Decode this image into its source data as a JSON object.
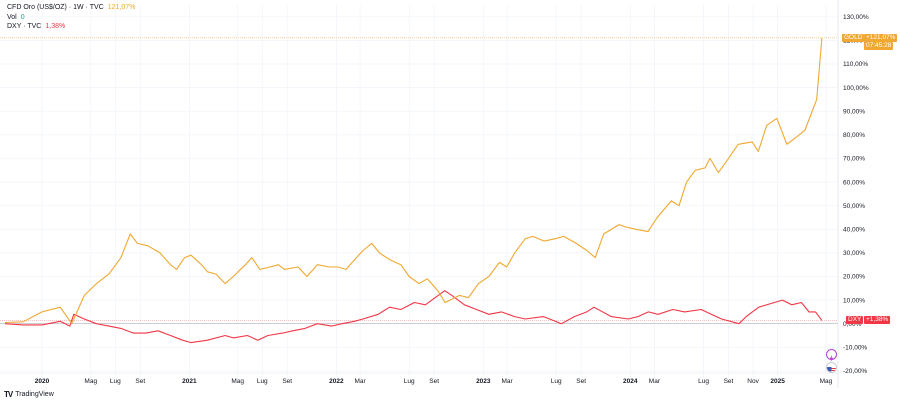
{
  "legend": {
    "gold_symbol": "CFD Oro (US$/OZ) · 1W · TVC",
    "gold_value": "121,07%",
    "vol_label": "Vol",
    "vol_value": "0",
    "dxy_symbol": "DXY · TVC",
    "dxy_value": "1,38%"
  },
  "tags": {
    "gold_name": "GOLD",
    "gold_pct": "+121,07%",
    "gold_timer": "07:45:28",
    "dxy_name": "DXY",
    "dxy_pct": "+1,38%"
  },
  "brand": {
    "logo": "TV",
    "name": "TradingView"
  },
  "colors": {
    "gold": "#f0a830",
    "dxy": "#f23645",
    "grid": "#f0f3fa"
  },
  "chart_data": {
    "type": "line",
    "y_unit": "%",
    "ylim": [
      -23,
      135
    ],
    "y_ticks": [
      "130,00%",
      "120,00%",
      "110,00%",
      "100,00%",
      "90,00%",
      "80,00%",
      "70,00%",
      "60,00%",
      "50,00%",
      "40,00%",
      "30,00%",
      "20,00%",
      "10,00%",
      "0,00%",
      "-10,00%",
      "-20,00%"
    ],
    "x_ticks": [
      "2020",
      "Mag",
      "Lug",
      "Set",
      "2021",
      "Mag",
      "Lug",
      "Set",
      "2022",
      "Mar",
      "Lug",
      "Set",
      "2023",
      "Mar",
      "Lug",
      "Set",
      "2024",
      "Mar",
      "Lug",
      "Set",
      "Nov",
      "2025",
      "Mag"
    ],
    "x_tick_years": [
      "2020",
      "2021",
      "2022",
      "2023",
      "2024",
      "2025"
    ],
    "x_tick_dates": [
      "2020-01-01",
      "2020-05-01",
      "2020-07-01",
      "2020-09-01",
      "2021-01-01",
      "2021-05-01",
      "2021-07-01",
      "2021-09-01",
      "2022-01-01",
      "2022-03-01",
      "2022-07-01",
      "2022-09-01",
      "2023-01-01",
      "2023-03-01",
      "2023-07-01",
      "2023-09-01",
      "2024-01-01",
      "2024-03-01",
      "2024-07-01",
      "2024-09-01",
      "2024-11-01",
      "2025-01-01",
      "2025-05-01"
    ],
    "series": [
      {
        "name": "GOLD",
        "x": [
          "2019-10-01",
          "2019-11-15",
          "2020-01-01",
          "2020-02-15",
          "2020-03-15",
          "2020-04-15",
          "2020-05-15",
          "2020-06-15",
          "2020-07-15",
          "2020-08-07",
          "2020-08-25",
          "2020-09-20",
          "2020-10-20",
          "2020-11-15",
          "2020-11-30",
          "2020-12-20",
          "2021-01-05",
          "2021-01-31",
          "2021-02-15",
          "2021-03-08",
          "2021-03-31",
          "2021-04-20",
          "2021-05-20",
          "2021-06-05",
          "2021-06-25",
          "2021-07-20",
          "2021-08-10",
          "2021-08-25",
          "2021-09-28",
          "2021-10-20",
          "2021-11-15",
          "2021-12-15",
          "2022-01-05",
          "2022-01-25",
          "2022-02-20",
          "2022-03-08",
          "2022-03-30",
          "2022-04-18",
          "2022-05-15",
          "2022-06-10",
          "2022-07-01",
          "2022-07-25",
          "2022-08-15",
          "2022-09-10",
          "2022-09-28",
          "2022-11-03",
          "2022-11-25",
          "2022-12-20",
          "2023-01-15",
          "2023-02-10",
          "2023-02-28",
          "2023-03-20",
          "2023-04-15",
          "2023-05-04",
          "2023-06-01",
          "2023-06-29",
          "2023-07-20",
          "2023-08-20",
          "2023-09-15",
          "2023-10-06",
          "2023-10-27",
          "2023-12-04",
          "2023-12-20",
          "2024-01-15",
          "2024-02-14",
          "2024-03-08",
          "2024-04-12",
          "2024-05-01",
          "2024-05-20",
          "2024-06-10",
          "2024-07-05",
          "2024-07-17",
          "2024-08-07",
          "2024-09-01",
          "2024-09-25",
          "2024-10-30",
          "2024-11-14",
          "2024-12-05",
          "2024-12-30",
          "2025-01-24",
          "2025-02-24",
          "2025-03-10",
          "2025-03-28",
          "2025-04-08",
          "2025-04-21"
        ],
        "values": [
          0.5,
          0.8,
          5,
          7,
          0,
          12,
          17,
          21,
          28,
          38,
          34,
          33,
          30,
          25,
          23,
          28,
          29,
          25,
          22,
          21,
          17,
          20,
          25,
          28,
          23,
          24,
          25,
          23,
          24,
          20,
          25,
          24,
          24,
          23,
          28,
          31,
          34,
          30,
          27,
          25,
          20,
          17,
          19,
          14,
          9,
          12,
          11,
          17,
          20,
          26,
          24,
          30,
          36,
          37,
          35,
          36,
          37,
          34,
          31,
          28,
          38,
          42,
          41,
          40,
          39,
          45,
          52,
          50,
          60,
          65,
          66,
          70,
          64,
          70,
          76,
          77,
          73,
          84,
          87,
          76,
          80,
          82,
          90,
          95,
          121.07
        ]
      },
      {
        "name": "DXY",
        "x": [
          "2019-10-01",
          "2019-11-15",
          "2020-01-01",
          "2020-02-15",
          "2020-03-10",
          "2020-03-20",
          "2020-04-15",
          "2020-05-15",
          "2020-06-15",
          "2020-07-15",
          "2020-08-15",
          "2020-09-15",
          "2020-10-15",
          "2020-11-15",
          "2020-12-15",
          "2021-01-05",
          "2021-02-15",
          "2021-03-31",
          "2021-04-20",
          "2021-05-25",
          "2021-06-20",
          "2021-07-15",
          "2021-08-20",
          "2021-09-15",
          "2021-10-15",
          "2021-11-15",
          "2021-12-20",
          "2022-01-15",
          "2022-02-15",
          "2022-03-08",
          "2022-04-15",
          "2022-05-13",
          "2022-06-10",
          "2022-07-14",
          "2022-08-10",
          "2022-09-27",
          "2022-10-15",
          "2022-11-15",
          "2022-12-15",
          "2023-01-15",
          "2023-02-15",
          "2023-03-20",
          "2023-04-15",
          "2023-05-30",
          "2023-06-15",
          "2023-07-14",
          "2023-08-15",
          "2023-09-15",
          "2023-10-03",
          "2023-11-15",
          "2023-12-27",
          "2024-01-20",
          "2024-02-15",
          "2024-03-10",
          "2024-04-16",
          "2024-05-15",
          "2024-06-25",
          "2024-07-20",
          "2024-08-15",
          "2024-09-27",
          "2024-10-15",
          "2024-11-15",
          "2025-01-13",
          "2025-02-05",
          "2025-03-01",
          "2025-03-20",
          "2025-04-05",
          "2025-04-21"
        ],
        "values": [
          0,
          -0.5,
          -0.5,
          1,
          -1,
          4,
          2,
          0,
          -1,
          -2,
          -4,
          -4,
          -3,
          -5,
          -7,
          -8,
          -7,
          -5,
          -6,
          -5,
          -7,
          -5,
          -4,
          -3,
          -2,
          0,
          -1,
          0,
          1,
          2,
          4,
          7,
          6,
          9,
          8,
          14,
          12,
          8,
          6,
          4,
          5,
          3,
          2,
          3,
          2,
          0,
          3,
          5,
          7,
          3,
          2,
          3,
          5,
          4,
          6,
          5,
          6,
          4,
          2,
          0,
          3,
          7,
          10,
          8,
          9,
          5,
          5,
          1.38
        ]
      }
    ]
  }
}
